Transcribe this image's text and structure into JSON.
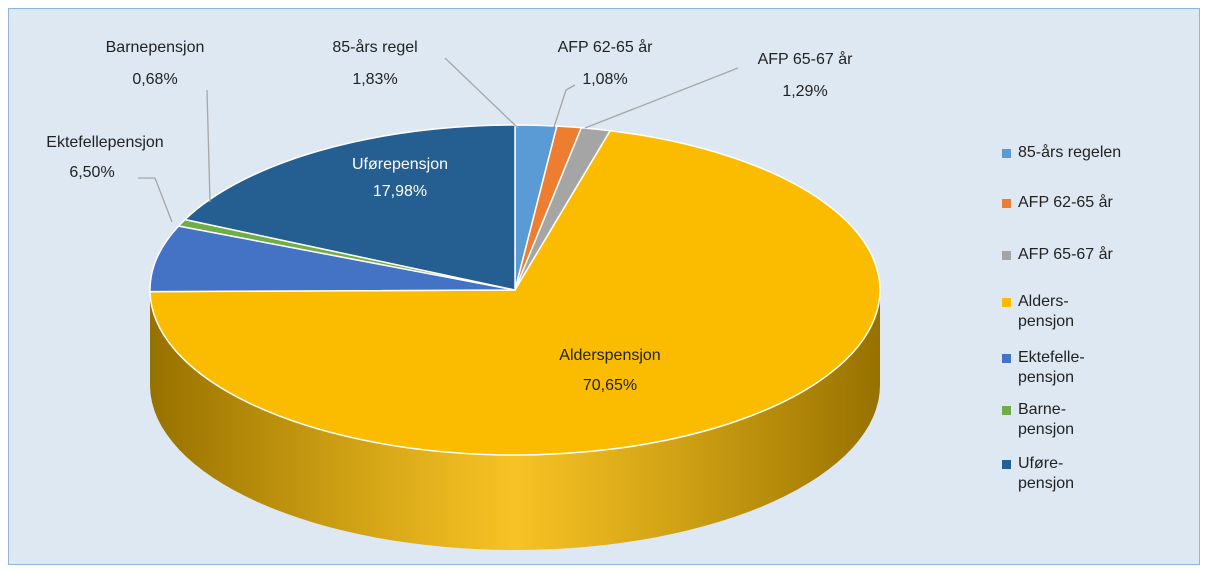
{
  "chart_data": {
    "type": "pie",
    "categories": [
      "85-års regel",
      "AFP 62-65 år",
      "AFP 65-67 år",
      "Alderspensjon",
      "Ektefellepensjon",
      "Barnepensjon",
      "Uførepensjon"
    ],
    "legend": [
      "85-års regelen",
      "AFP 62-65 år",
      "AFP 65-67 år",
      "Alders-\npensjon",
      "Ektefelle-\npensjon",
      "Barne-\npensjon",
      "Uføre-\npensjon"
    ],
    "values": [
      1.83,
      1.08,
      1.29,
      70.65,
      6.5,
      0.68,
      17.98
    ],
    "value_labels": [
      "1,83%",
      "1,08%",
      "1,29%",
      "70,65%",
      "6,50%",
      "0,68%",
      "17,98%"
    ],
    "colors": [
      "#5b9bd5",
      "#ed7d31",
      "#a5a5a5",
      "#fbbc00",
      "#4472c4",
      "#70ad47",
      "#255e91"
    ],
    "legend_position": "right"
  }
}
